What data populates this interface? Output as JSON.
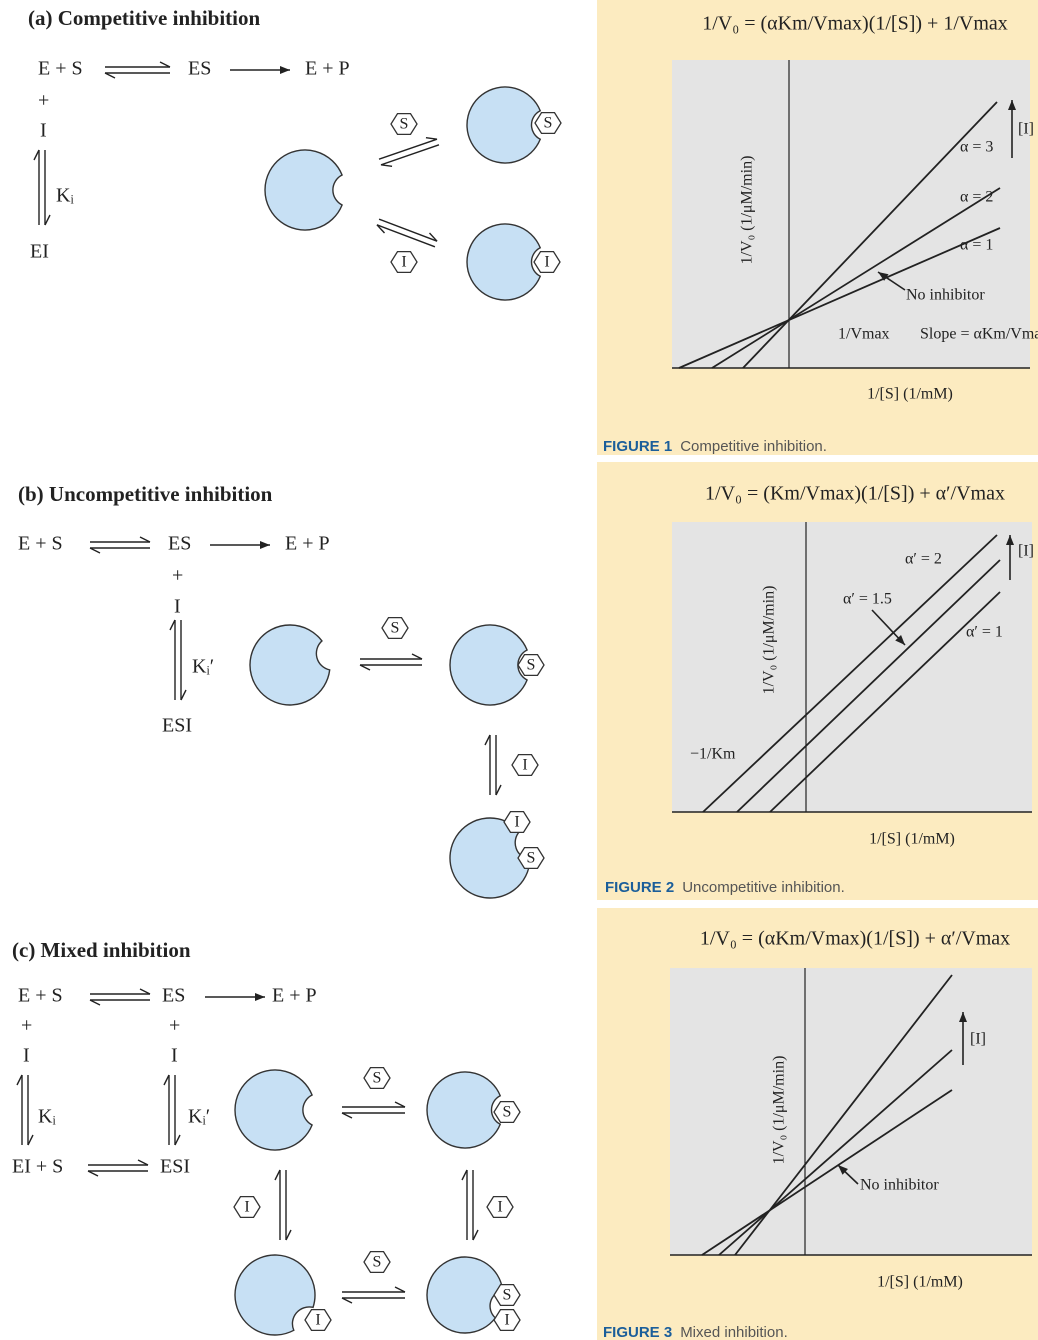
{
  "panels": [
    {
      "title": "(a) Competitive inhibition",
      "scheme": [
        "E + S",
        "ES",
        "E + P",
        "+",
        "I",
        "Kᵢ",
        "EI"
      ],
      "tokens": [
        "S",
        "S",
        "I",
        "I"
      ]
    },
    {
      "title": "(b) Uncompetitive inhibition",
      "scheme": [
        "E + S",
        "ES",
        "E + P",
        "+",
        "I",
        "Kᵢ′",
        "ESI"
      ],
      "tokens": [
        "S",
        "S",
        "I",
        "I",
        "S"
      ]
    },
    {
      "title": "(c) Mixed inhibition",
      "scheme": [
        "E + S",
        "ES",
        "E + P",
        "+",
        "I",
        "+",
        "I",
        "Kᵢ",
        "Kᵢ′",
        "EI + S",
        "ESI"
      ],
      "tokens": [
        "S",
        "S",
        "I",
        "I",
        "I",
        "S",
        "S",
        "I"
      ]
    }
  ],
  "figures": [
    {
      "equation": "1/V₀ = (αKm/Vmax)(1/[S]) + 1/Vmax",
      "y_label": "1/V₀ (1/μM/min)",
      "x_label": "1/[S] (1/mM)",
      "labels": [
        "α = 3",
        "α = 2",
        "α = 1",
        "No inhibitor",
        "[I]",
        "1/Vmax",
        "Slope = αKm/Vmax"
      ],
      "caption_number": "FIGURE 1",
      "caption_text": "Competitive inhibition."
    },
    {
      "equation": "1/V₀ = (Km/Vmax)(1/[S]) + α′/Vmax",
      "y_label": "1/V₀ (1/μM/min)",
      "x_label": "1/[S] (1/mM)",
      "labels": [
        "α′ = 2",
        "α′ = 1.5",
        "α′ = 1",
        "[I]",
        "−1/Km"
      ],
      "caption_number": "FIGURE 2",
      "caption_text": "Uncompetitive inhibition."
    },
    {
      "equation": "1/V₀ = (αKm/Vmax)(1/[S]) + α′/Vmax",
      "y_label": "1/V₀ (1/μM/min)",
      "x_label": "1/[S] (1/mM)",
      "labels": [
        "[I]",
        "No inhibitor"
      ],
      "caption_number": "FIGURE 3",
      "caption_text": "Mixed inhibition."
    }
  ]
}
